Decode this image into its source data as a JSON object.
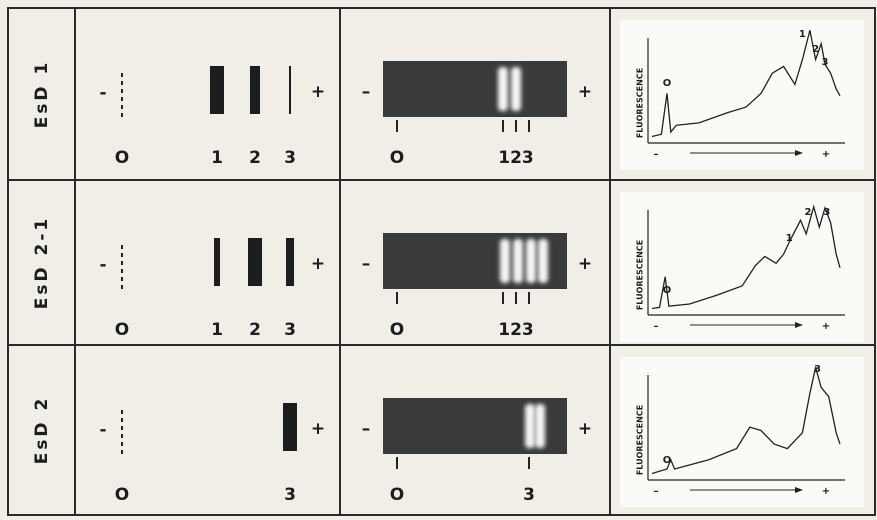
{
  "rows": [
    {
      "label": "EsD 1",
      "schematic": {
        "minus": "-",
        "plus": "+",
        "origin": "O",
        "bands": [
          "1",
          "2",
          "3"
        ]
      },
      "gel": {
        "minus": "–",
        "plus": "+",
        "origin": "O",
        "bands": "123"
      },
      "trace": {
        "axis_label": "FLUORESCENCE",
        "origin": "O",
        "peaks": [
          "1",
          "2",
          "3"
        ],
        "minus": "–",
        "plus": "+"
      }
    },
    {
      "label": "EsD 2-1",
      "schematic": {
        "minus": "-",
        "plus": "+",
        "origin": "O",
        "bands": [
          "1",
          "2",
          "3"
        ]
      },
      "gel": {
        "minus": "–",
        "plus": "+",
        "origin": "O",
        "bands": "123"
      },
      "trace": {
        "axis_label": "FLUORESCENCE",
        "origin": "O",
        "peaks": [
          "1",
          "2",
          "3"
        ],
        "minus": "–",
        "plus": "+"
      }
    },
    {
      "label": "EsD 2",
      "schematic": {
        "minus": "-",
        "plus": "+",
        "origin": "O",
        "bands": [
          "3"
        ]
      },
      "gel": {
        "minus": "–",
        "plus": "+",
        "origin": "O",
        "bands": "3"
      },
      "trace": {
        "axis_label": "FLUORESCENCE",
        "origin": "O",
        "peaks": [
          "3"
        ],
        "minus": "–",
        "plus": "+"
      }
    }
  ]
}
